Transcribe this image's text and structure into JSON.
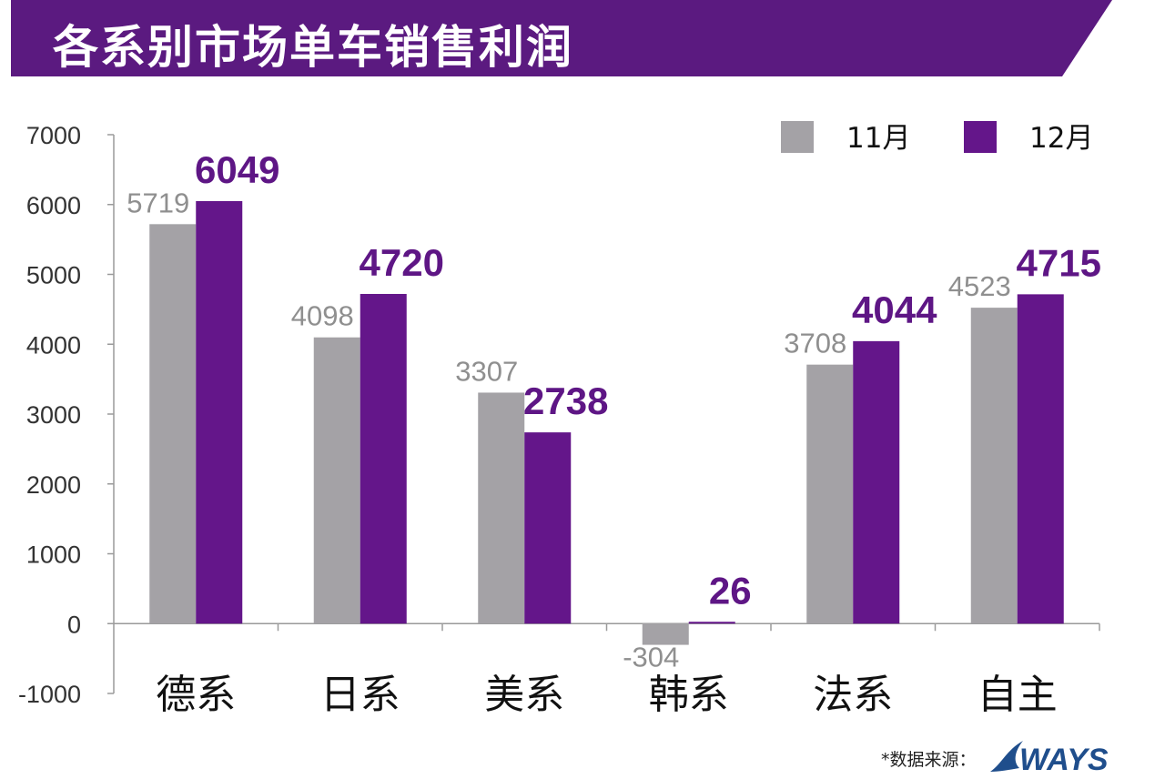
{
  "title": "各系别市场单车销售利润",
  "colors": {
    "banner": "#5b1a80",
    "series_a": "#a4a2a6",
    "series_b": "#64168a",
    "axis": "#9a9a9a",
    "label_a": "#8f8f8f",
    "label_b": "#5e1685",
    "logo": "#1f4e8c"
  },
  "source": {
    "label": "*数据来源：",
    "logo_text": "WAYS"
  },
  "chart_data": {
    "type": "bar",
    "title": "各系别市场单车销售利润",
    "categories": [
      "德系",
      "日系",
      "美系",
      "韩系",
      "法系",
      "自主"
    ],
    "series": [
      {
        "name": "11月",
        "values": [
          5719,
          4098,
          3307,
          -304,
          3708,
          4523
        ]
      },
      {
        "name": "12月",
        "values": [
          6049,
          4720,
          2738,
          26,
          4044,
          4715
        ]
      }
    ],
    "yticks": [
      7000,
      6000,
      5000,
      4000,
      3000,
      2000,
      1000,
      0,
      -1000
    ],
    "ylim": [
      -1000,
      7000
    ],
    "legend_position": "top-right",
    "grid": false
  }
}
